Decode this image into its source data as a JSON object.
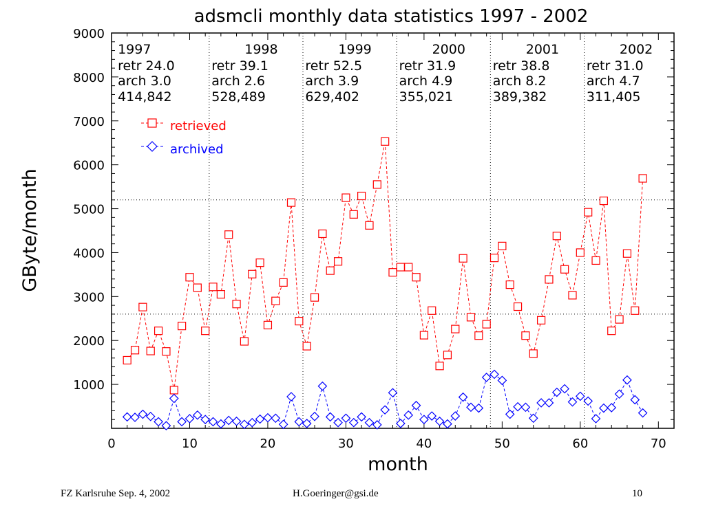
{
  "chart_data": {
    "type": "line",
    "title": "adsmcli monthly data statistics 1997 - 2002",
    "xlabel": "month",
    "ylabel": "GByte/month",
    "xlim": [
      0,
      72
    ],
    "ylim": [
      0,
      9000
    ],
    "xticks": [
      0,
      10,
      20,
      30,
      40,
      50,
      60,
      70
    ],
    "yticks": [
      1000,
      2000,
      3000,
      4000,
      5000,
      6000,
      7000,
      8000,
      9000
    ],
    "year_dividers": [
      12.5,
      24.5,
      36.5,
      48.5,
      60.5
    ],
    "reference_lines": [
      2600,
      5200
    ],
    "year_blocks": [
      {
        "year": "1997",
        "retr": "retr  24.0",
        "arch": "arch  3.0",
        "count": "414,842",
        "x": 0.8
      },
      {
        "year": "1998",
        "retr": "retr  39.1",
        "arch": "arch  2.6",
        "count": "528,489",
        "x": 12.8
      },
      {
        "year": "1999",
        "retr": "retr  52.5",
        "arch": "arch  3.9",
        "count": "629,402",
        "x": 24.8
      },
      {
        "year": "2000",
        "retr": "retr  31.9",
        "arch": "arch  4.9",
        "count": "355,021",
        "x": 36.8
      },
      {
        "year": "2001",
        "retr": "retr  38.8",
        "arch": "arch  8.2",
        "count": "389,382",
        "x": 48.8
      },
      {
        "year": "2002",
        "retr": "retr  31.0",
        "arch": "arch  4.7",
        "count": "311,405",
        "x": 60.8
      }
    ],
    "legend_position": "top-left",
    "series": [
      {
        "name": "retrieved",
        "color": "#ff0000",
        "marker": "square",
        "points": [
          [
            2,
            1550
          ],
          [
            3,
            1780
          ],
          [
            4,
            2760
          ],
          [
            5,
            1760
          ],
          [
            6,
            2220
          ],
          [
            7,
            1750
          ],
          [
            8,
            870
          ],
          [
            9,
            2330
          ],
          [
            10,
            3440
          ],
          [
            11,
            3200
          ],
          [
            12,
            2220
          ],
          [
            13,
            3220
          ],
          [
            14,
            3050
          ],
          [
            15,
            4410
          ],
          [
            16,
            2830
          ],
          [
            17,
            1980
          ],
          [
            18,
            3510
          ],
          [
            19,
            3770
          ],
          [
            20,
            2350
          ],
          [
            21,
            2900
          ],
          [
            22,
            3320
          ],
          [
            23,
            5140
          ],
          [
            24,
            2440
          ],
          [
            25,
            1870
          ],
          [
            26,
            2980
          ],
          [
            27,
            4430
          ],
          [
            28,
            3590
          ],
          [
            29,
            3800
          ],
          [
            30,
            5250
          ],
          [
            31,
            4870
          ],
          [
            32,
            5290
          ],
          [
            33,
            4620
          ],
          [
            34,
            5550
          ],
          [
            35,
            6530
          ],
          [
            36,
            3550
          ],
          [
            37,
            3670
          ],
          [
            38,
            3670
          ],
          [
            39,
            3440
          ],
          [
            40,
            2120
          ],
          [
            41,
            2680
          ],
          [
            42,
            1420
          ],
          [
            43,
            1670
          ],
          [
            44,
            2260
          ],
          [
            45,
            3870
          ],
          [
            46,
            2530
          ],
          [
            47,
            2110
          ],
          [
            48,
            2370
          ],
          [
            49,
            3880
          ],
          [
            50,
            4150
          ],
          [
            51,
            3270
          ],
          [
            52,
            2770
          ],
          [
            53,
            2110
          ],
          [
            54,
            1700
          ],
          [
            55,
            2460
          ],
          [
            56,
            3390
          ],
          [
            57,
            4380
          ],
          [
            58,
            3620
          ],
          [
            59,
            3030
          ],
          [
            60,
            4000
          ],
          [
            61,
            4920
          ],
          [
            62,
            3820
          ],
          [
            63,
            5180
          ],
          [
            64,
            2220
          ],
          [
            65,
            2480
          ],
          [
            66,
            3980
          ],
          [
            67,
            2680
          ],
          [
            68,
            5690
          ]
        ]
      },
      {
        "name": "archived",
        "color": "#0000ff",
        "marker": "diamond",
        "points": [
          [
            2,
            260
          ],
          [
            3,
            250
          ],
          [
            4,
            320
          ],
          [
            5,
            270
          ],
          [
            6,
            150
          ],
          [
            7,
            60
          ],
          [
            8,
            680
          ],
          [
            9,
            150
          ],
          [
            10,
            220
          ],
          [
            11,
            300
          ],
          [
            12,
            200
          ],
          [
            13,
            150
          ],
          [
            14,
            100
          ],
          [
            15,
            180
          ],
          [
            16,
            160
          ],
          [
            17,
            90
          ],
          [
            18,
            130
          ],
          [
            19,
            210
          ],
          [
            20,
            240
          ],
          [
            21,
            230
          ],
          [
            22,
            90
          ],
          [
            23,
            720
          ],
          [
            24,
            150
          ],
          [
            25,
            110
          ],
          [
            26,
            270
          ],
          [
            27,
            960
          ],
          [
            28,
            260
          ],
          [
            29,
            130
          ],
          [
            30,
            230
          ],
          [
            31,
            130
          ],
          [
            32,
            260
          ],
          [
            33,
            130
          ],
          [
            34,
            80
          ],
          [
            35,
            420
          ],
          [
            36,
            810
          ],
          [
            37,
            110
          ],
          [
            38,
            300
          ],
          [
            39,
            520
          ],
          [
            40,
            200
          ],
          [
            41,
            280
          ],
          [
            42,
            160
          ],
          [
            43,
            100
          ],
          [
            44,
            280
          ],
          [
            45,
            710
          ],
          [
            46,
            480
          ],
          [
            47,
            460
          ],
          [
            48,
            1160
          ],
          [
            49,
            1230
          ],
          [
            50,
            1090
          ],
          [
            51,
            320
          ],
          [
            52,
            490
          ],
          [
            53,
            480
          ],
          [
            54,
            230
          ],
          [
            55,
            580
          ],
          [
            56,
            580
          ],
          [
            57,
            820
          ],
          [
            58,
            900
          ],
          [
            59,
            600
          ],
          [
            60,
            730
          ],
          [
            61,
            620
          ],
          [
            62,
            220
          ],
          [
            63,
            460
          ],
          [
            64,
            470
          ],
          [
            65,
            780
          ],
          [
            66,
            1100
          ],
          [
            67,
            650
          ],
          [
            68,
            350
          ]
        ]
      }
    ]
  },
  "footer": {
    "left": "FZ Karlsruhe  Sep. 4, 2002",
    "center": "H.Goeringer@gsi.de",
    "right": "10"
  }
}
